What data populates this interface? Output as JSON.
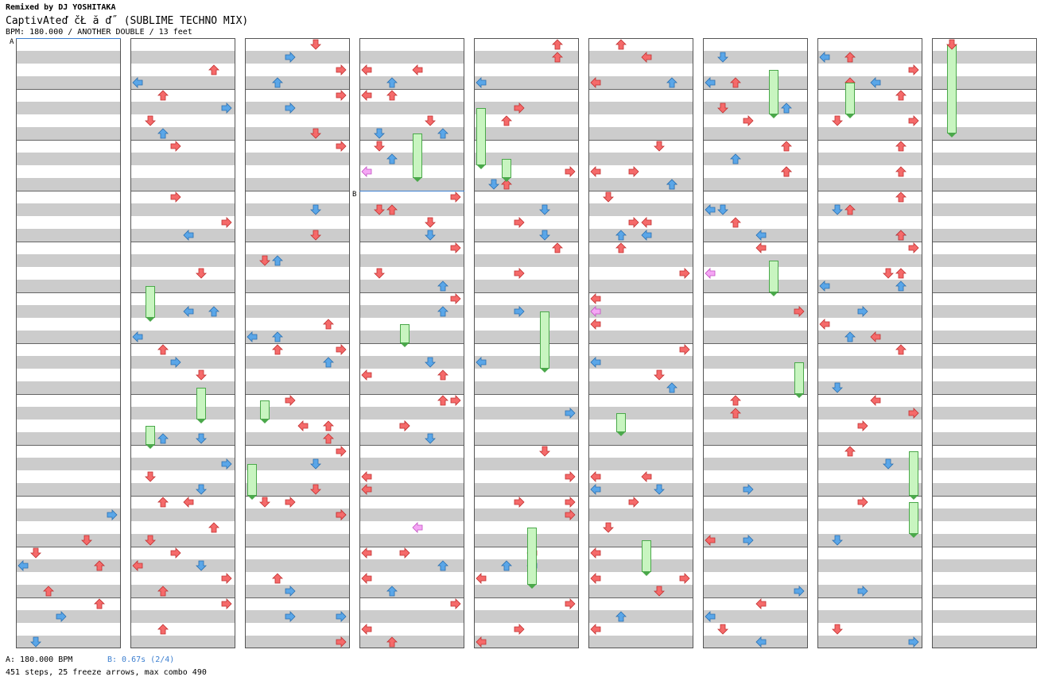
{
  "header": {
    "artist": "Remixed by DJ YOSHITAKA",
    "title": "CaptivAteď čŁ ă ď˝ (SUBLIME TECHNO MIX)",
    "info": "BPM: 180.000 / ANOTHER DOUBLE / 13 feet"
  },
  "footer": {
    "bpm_marker": "A: 180.000 BPM",
    "stop_marker": "B: 0.67s (2/4)",
    "stats": "451 steps, 25 freeze arrows, max combo 490"
  },
  "markers": {
    "a_label": "A",
    "b_label": "B"
  },
  "colors": {
    "red_arrow": "#f56a6a",
    "blue_arrow": "#5aa6e8",
    "pink_arrow": "#f5a6f5",
    "freeze": "#c8f5c0",
    "marker_blue": "#3d7fd0"
  }
}
